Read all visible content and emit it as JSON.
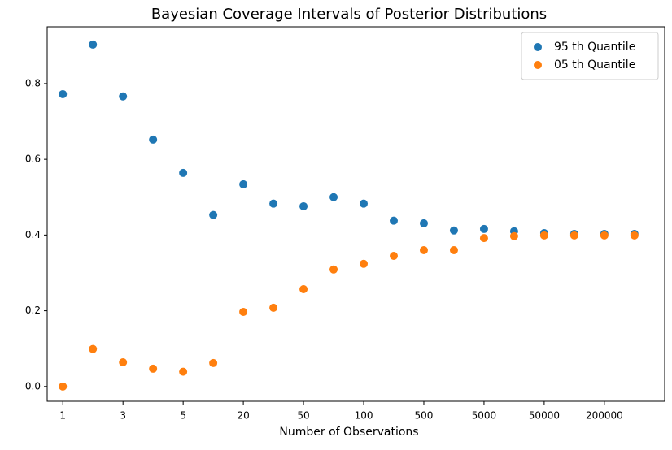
{
  "chart_data": {
    "type": "scatter",
    "title": "Bayesian Coverage Intervals of Posterior Distributions",
    "x_label": "Number of Observations",
    "categories": [
      "1",
      null,
      "3",
      null,
      "5",
      null,
      "20",
      null,
      "50",
      null,
      "100",
      null,
      "500",
      null,
      "5000",
      null,
      "50000",
      null,
      "200000",
      null
    ],
    "series": [
      {
        "name": "95 th Quantile",
        "color": "#1f77b4",
        "values": [
          0.772,
          0.903,
          0.766,
          0.652,
          0.564,
          0.453,
          0.534,
          0.483,
          0.476,
          0.5,
          0.483,
          0.438,
          0.431,
          0.412,
          0.416,
          0.41,
          0.405,
          0.403,
          0.403,
          0.403
        ]
      },
      {
        "name": "05 th Quantile",
        "color": "#ff7f0e",
        "values": [
          0.0,
          0.099,
          0.064,
          0.047,
          0.039,
          0.062,
          0.197,
          0.208,
          0.257,
          0.309,
          0.324,
          0.345,
          0.36,
          0.36,
          0.392,
          0.397,
          0.399,
          0.399,
          0.399,
          0.399
        ]
      }
    ],
    "ylim": [
      -0.039,
      0.95
    ],
    "yticks": [
      {
        "value": 0,
        "label": "0.0"
      },
      0.2,
      0.4,
      0.6,
      0.8
    ],
    "legend": "upper right"
  }
}
